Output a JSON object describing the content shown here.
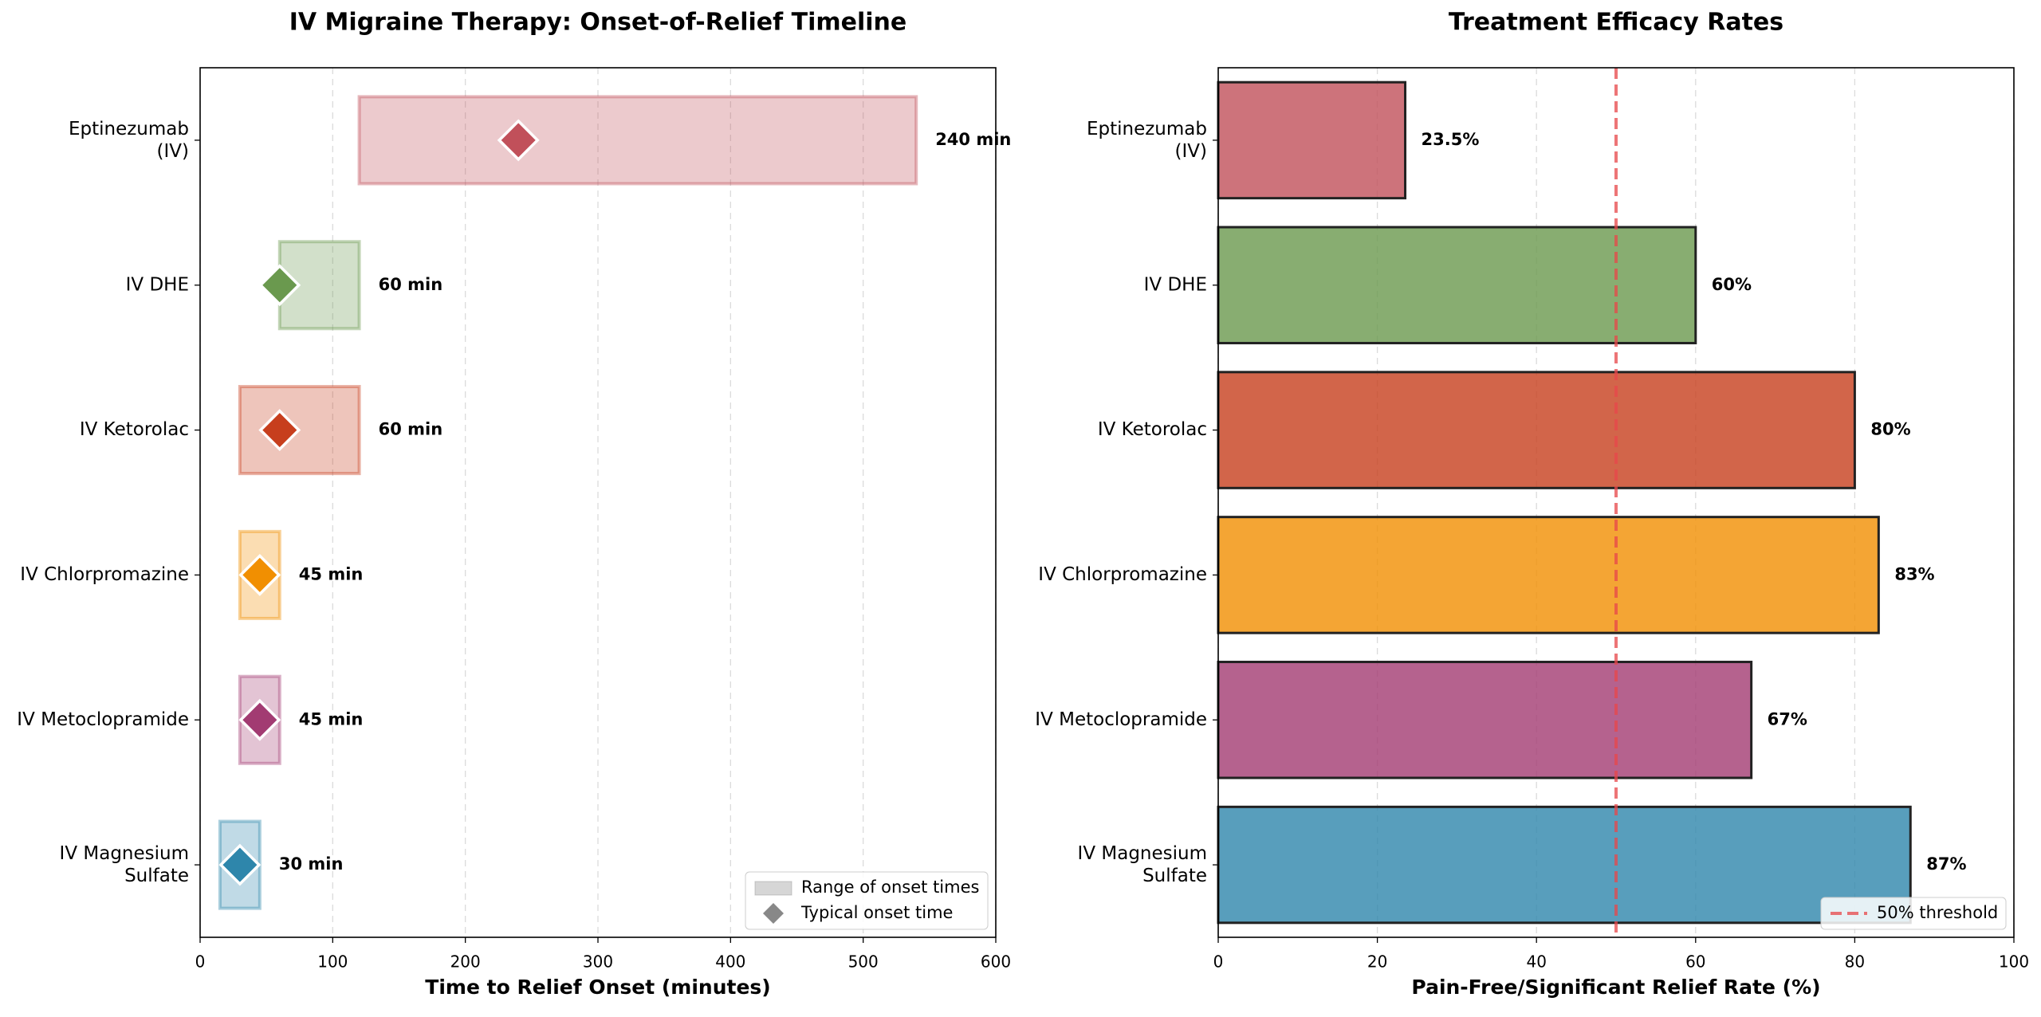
{
  "chart_data": [
    {
      "type": "range",
      "title": "IV Migraine Therapy: Onset-of-Relief Timeline",
      "xlabel": "Time to Relief Onset (minutes)",
      "categories": [
        "Eptinezumab\n(IV)",
        "IV DHE",
        "IV Ketorolac",
        "IV Chlorpromazine",
        "IV Metoclopramide",
        "IV Magnesium\nSulfate"
      ],
      "low": [
        120,
        60,
        30,
        30,
        30,
        15
      ],
      "high": [
        540,
        120,
        120,
        60,
        60,
        45
      ],
      "values": [
        240,
        60,
        60,
        45,
        45,
        30
      ],
      "value_labels": [
        "240 min",
        "60 min",
        "60 min",
        "45 min",
        "45 min",
        "30 min"
      ],
      "colors": [
        "#c1505a",
        "#6a994e",
        "#c73e1d",
        "#f18f01",
        "#a23b72",
        "#2e86ab"
      ],
      "xlim": [
        0,
        600
      ],
      "xticks": [
        0,
        100,
        200,
        300,
        400,
        500,
        600
      ],
      "grid": true,
      "legend": [
        "Range of onset times",
        "Typical onset time"
      ],
      "legend_loc": "lower right"
    },
    {
      "type": "barh",
      "title": "Treatment Efficacy Rates",
      "xlabel": "Pain-Free/Significant Relief Rate (%)",
      "categories": [
        "Eptinezumab\n(IV)",
        "IV DHE",
        "IV Ketorolac",
        "IV Chlorpromazine",
        "IV Metoclopramide",
        "IV Magnesium\nSulfate"
      ],
      "values": [
        23.5,
        60,
        80,
        83,
        67,
        87
      ],
      "value_labels": [
        "23.5%",
        "60%",
        "80%",
        "83%",
        "67%",
        "87%"
      ],
      "colors": [
        "#c1505a",
        "#6a994e",
        "#c73e1d",
        "#f18f01",
        "#a23b72",
        "#2e86ab"
      ],
      "xlim": [
        0,
        100
      ],
      "xticks": [
        0,
        20,
        40,
        60,
        80,
        100
      ],
      "grid": true,
      "threshold": {
        "value": 50,
        "label": "50% threshold",
        "color": "#e8474a"
      },
      "legend_loc": "lower right"
    }
  ]
}
